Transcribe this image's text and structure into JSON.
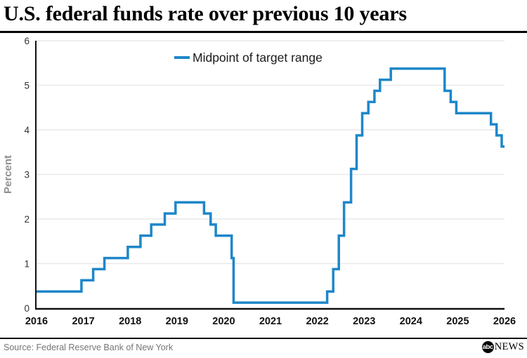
{
  "header": {
    "title": "U.S. federal funds rate over previous 10 years"
  },
  "chart_data": {
    "type": "line",
    "subtype": "step-after",
    "title": "U.S. federal funds rate over previous 10 years",
    "xlabel": "",
    "ylabel": "Percent",
    "legend": [
      "Midpoint of target range"
    ],
    "legend_position": "top-center",
    "grid": "horizontal",
    "xlim": [
      2016,
      2026
    ],
    "ylim": [
      0,
      6
    ],
    "x_ticks": [
      2016,
      2017,
      2018,
      2019,
      2020,
      2021,
      2022,
      2023,
      2024,
      2025,
      2026
    ],
    "y_ticks": [
      0,
      1,
      2,
      3,
      4,
      5,
      6
    ],
    "series": [
      {
        "name": "Midpoint of target range",
        "color": "#1E87C9",
        "points": [
          [
            2016.0,
            0.375
          ],
          [
            2016.96,
            0.625
          ],
          [
            2017.21,
            0.875
          ],
          [
            2017.45,
            1.125
          ],
          [
            2017.95,
            1.375
          ],
          [
            2018.22,
            1.625
          ],
          [
            2018.45,
            1.875
          ],
          [
            2018.74,
            2.125
          ],
          [
            2018.97,
            2.375
          ],
          [
            2019.58,
            2.125
          ],
          [
            2019.72,
            1.875
          ],
          [
            2019.83,
            1.625
          ],
          [
            2020.17,
            1.125
          ],
          [
            2020.21,
            0.125
          ],
          [
            2022.21,
            0.375
          ],
          [
            2022.34,
            0.875
          ],
          [
            2022.46,
            1.625
          ],
          [
            2022.57,
            2.375
          ],
          [
            2022.72,
            3.125
          ],
          [
            2022.84,
            3.875
          ],
          [
            2022.96,
            4.375
          ],
          [
            2023.09,
            4.625
          ],
          [
            2023.22,
            4.875
          ],
          [
            2023.34,
            5.125
          ],
          [
            2023.57,
            5.375
          ],
          [
            2024.72,
            4.875
          ],
          [
            2024.85,
            4.625
          ],
          [
            2024.97,
            4.375
          ],
          [
            2025.71,
            4.125
          ],
          [
            2025.83,
            3.875
          ],
          [
            2025.94,
            3.625
          ],
          [
            2026.0,
            3.625
          ]
        ]
      }
    ],
    "colors": {
      "line": "#1E87C9",
      "grid": "#e9e9e9",
      "axis": "#111111",
      "x_tick_text": "#111111",
      "y_tick_text": "#333333",
      "axis_title_text": "#909090",
      "legend_text": "#1a1a1a"
    }
  },
  "footer": {
    "source": "Source: Federal Reserve Bank of New York",
    "logo": {
      "abc": "abc",
      "news": "NEWS"
    }
  }
}
